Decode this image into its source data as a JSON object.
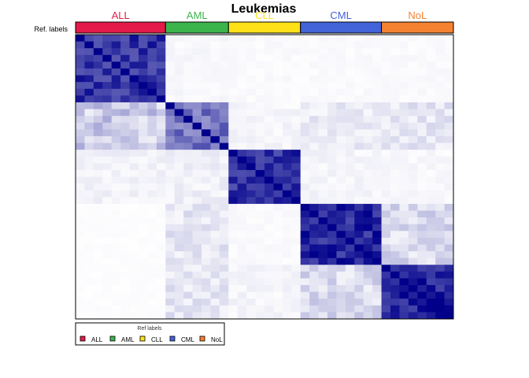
{
  "chart_data": {
    "type": "heatmap",
    "title": "Leukemias",
    "row_label": "Ref. labels",
    "legend_title": "Ref labels",
    "groups": [
      {
        "name": "ALL",
        "color": "#e31a4a",
        "size": 10
      },
      {
        "name": "AML",
        "color": "#3cb44b",
        "size": 7
      },
      {
        "name": "CLL",
        "color": "#ffe119",
        "size": 8
      },
      {
        "name": "CML",
        "color": "#4363d8",
        "size": 9
      },
      {
        "name": "NoL",
        "color": "#f58231",
        "size": 8
      }
    ],
    "colorscale": {
      "low": "#ffffff",
      "high": "#00008b"
    },
    "value_range": [
      0,
      1
    ],
    "diagonal_value": 1.0,
    "block_levels": [
      [
        0.8,
        0.03,
        0.02,
        0.02,
        0.02
      ],
      [
        0.2,
        0.55,
        0.04,
        0.08,
        0.1
      ],
      [
        0.05,
        0.06,
        0.82,
        0.04,
        0.03
      ],
      [
        0.01,
        0.1,
        0.02,
        0.85,
        0.15
      ],
      [
        0.01,
        0.1,
        0.04,
        0.15,
        0.88
      ]
    ],
    "legend": {
      "position": "bottom-left",
      "entries": [
        "ALL",
        "AML",
        "CLL",
        "CML",
        "NoL"
      ]
    },
    "grid": false
  }
}
